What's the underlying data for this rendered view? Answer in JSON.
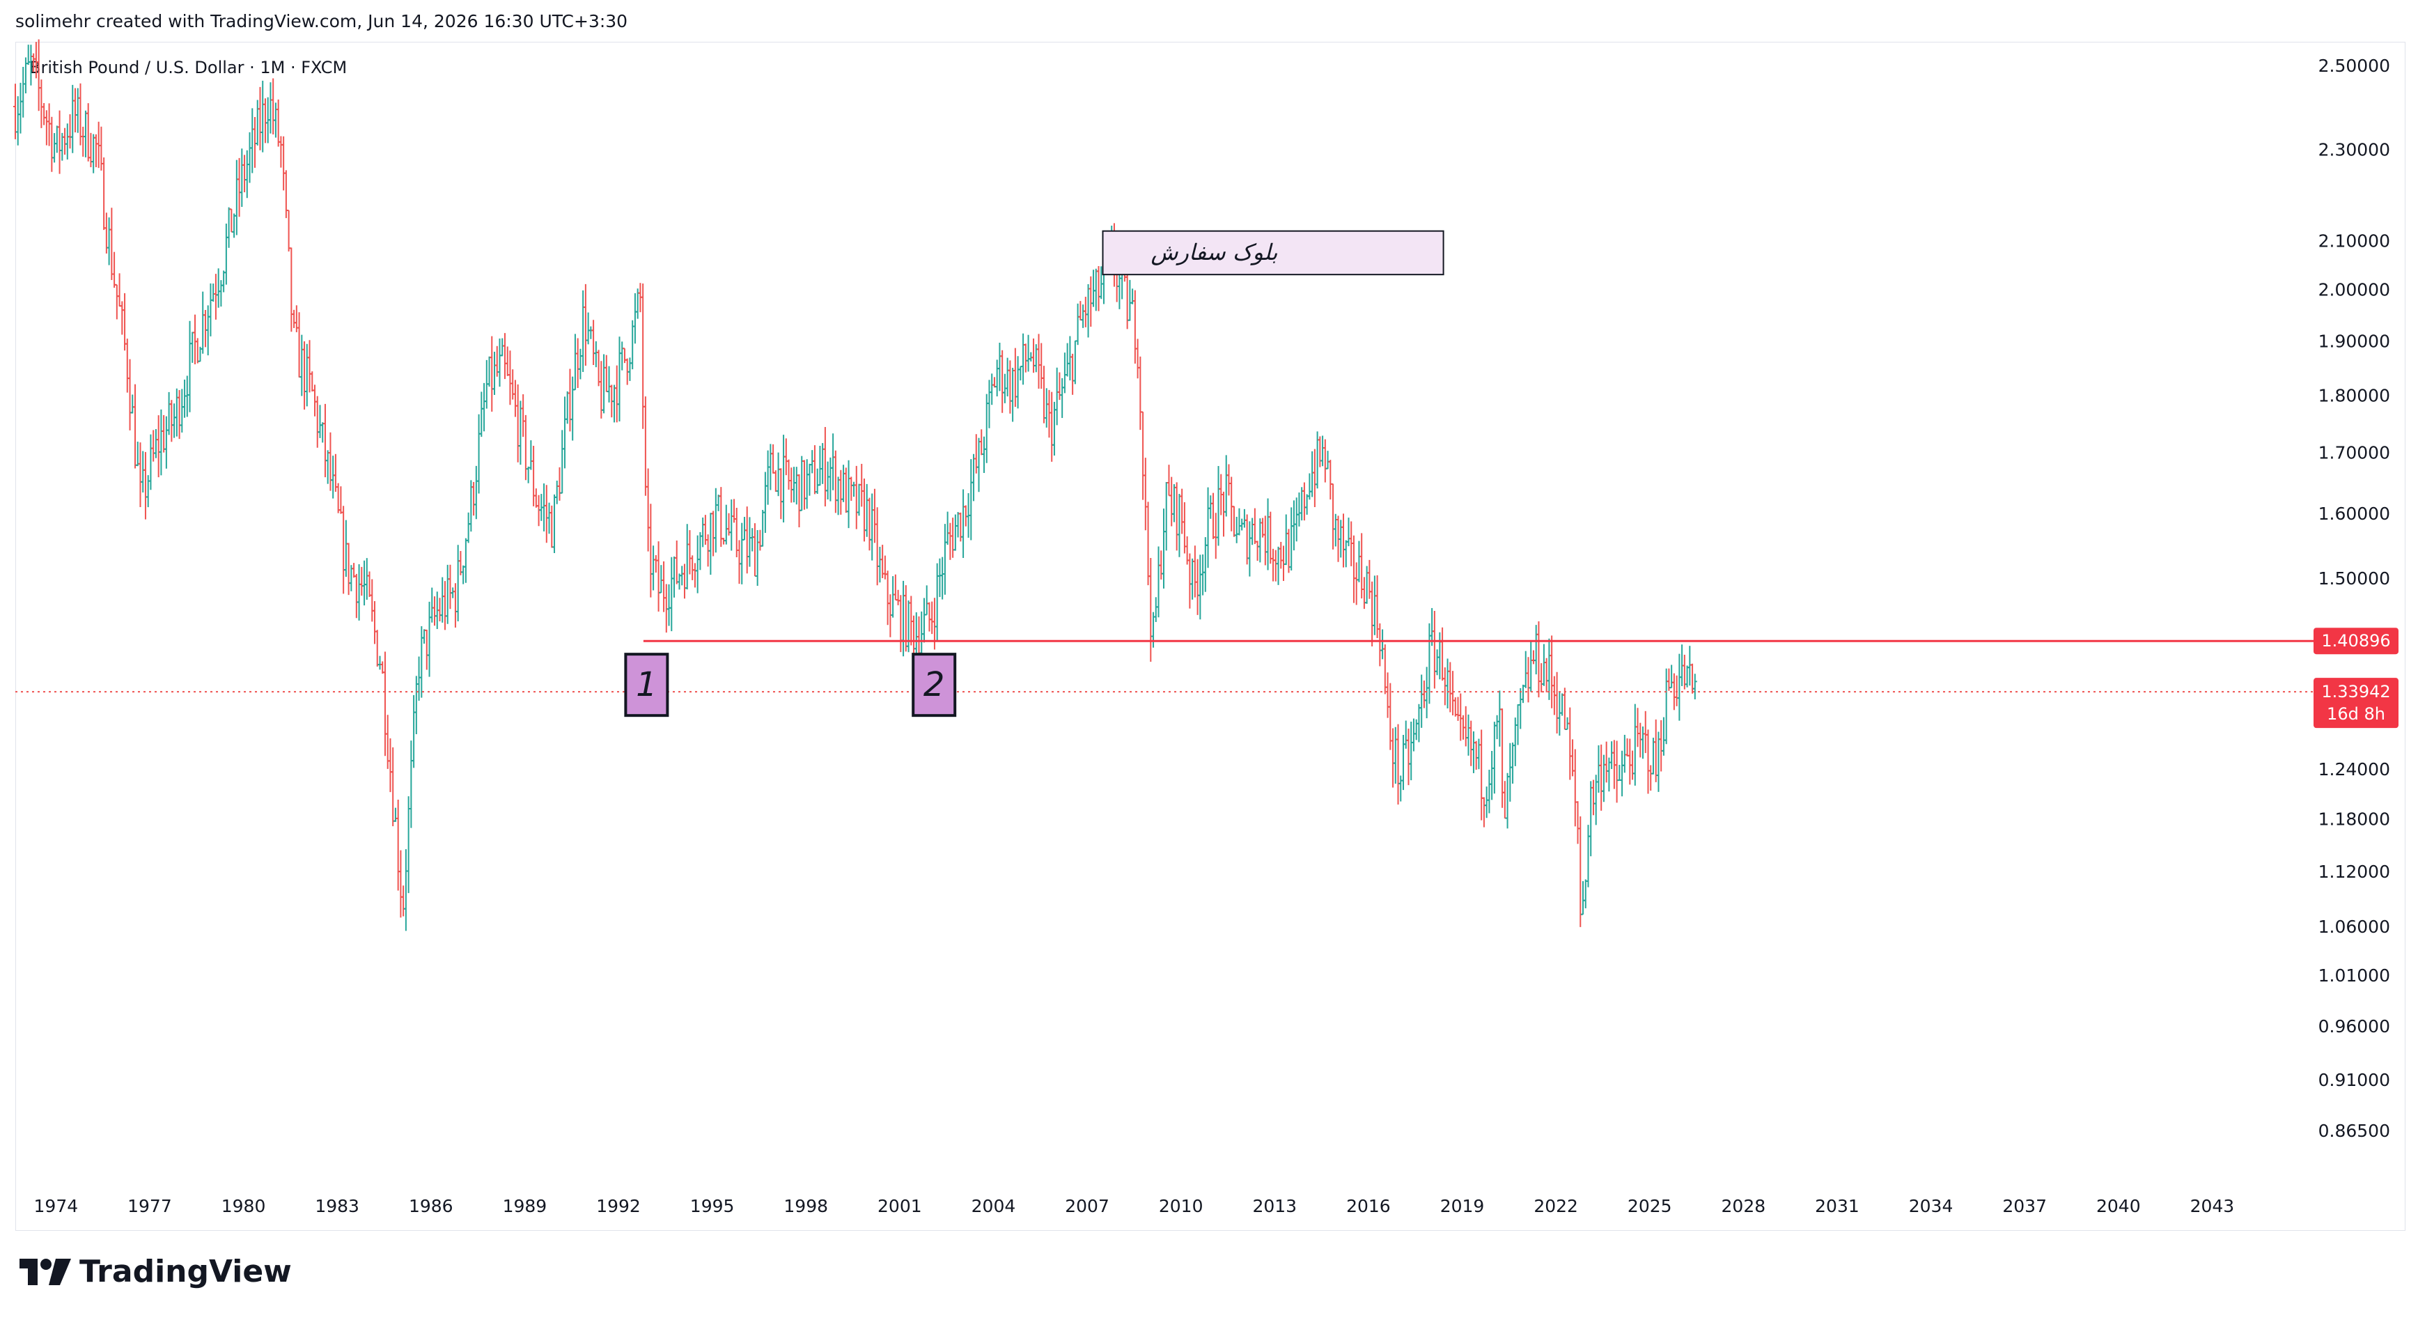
{
  "header": {
    "credit": "solimehr created with TradingView.com, Jun 14, 2026 16:30 UTC+3:30"
  },
  "footer": {
    "brand": "TradingView",
    "logo_icon": "tradingview-logo-icon"
  },
  "colors": {
    "up": "#26a69a",
    "down": "#ef5350",
    "level": "#f23645",
    "box_fill": "#f3e5f5",
    "marker_fill": "#ce93d8"
  },
  "chart_data": {
    "type": "ohlc-bar",
    "title": "British Pound / U.S. Dollar · 1M · FXCM",
    "y_scale": "log",
    "ylim": [
      0.82,
      2.56
    ],
    "xlim": [
      1972.7,
      2046.2
    ],
    "x_ticks": [
      "1974",
      "1977",
      "1980",
      "1983",
      "1986",
      "1989",
      "1992",
      "1995",
      "1998",
      "2001",
      "2004",
      "2007",
      "2010",
      "2013",
      "2016",
      "2019",
      "2022",
      "2025",
      "2028",
      "2031",
      "2034",
      "2037",
      "2040",
      "2043"
    ],
    "y_ticks": [
      "2.50000",
      "2.30000",
      "2.10000",
      "2.00000",
      "1.90000",
      "1.80000",
      "1.70000",
      "1.60000",
      "1.50000",
      "1.24000",
      "1.18000",
      "1.12000",
      "1.06000",
      "1.01000",
      "0.96000",
      "0.91000",
      "0.86500"
    ],
    "price_path": [
      [
        1972.7,
        2.4
      ],
      [
        1973.2,
        2.5
      ],
      [
        1974.0,
        2.3
      ],
      [
        1974.6,
        2.38
      ],
      [
        1975.3,
        2.3
      ],
      [
        1975.8,
        2.05
      ],
      [
        1976.3,
        1.85
      ],
      [
        1976.7,
        1.62
      ],
      [
        1977.3,
        1.72
      ],
      [
        1977.8,
        1.76
      ],
      [
        1978.3,
        1.86
      ],
      [
        1978.8,
        1.96
      ],
      [
        1979.3,
        2.05
      ],
      [
        1979.9,
        2.22
      ],
      [
        1980.5,
        2.35
      ],
      [
        1980.8,
        2.42
      ],
      [
        1981.2,
        2.3
      ],
      [
        1981.6,
        1.9
      ],
      [
        1982.2,
        1.8
      ],
      [
        1982.8,
        1.65
      ],
      [
        1983.3,
        1.52
      ],
      [
        1983.9,
        1.48
      ],
      [
        1984.4,
        1.38
      ],
      [
        1984.8,
        1.2
      ],
      [
        1985.1,
        1.08
      ],
      [
        1985.6,
        1.38
      ],
      [
        1986.2,
        1.45
      ],
      [
        1986.8,
        1.48
      ],
      [
        1987.3,
        1.62
      ],
      [
        1987.8,
        1.82
      ],
      [
        1988.3,
        1.85
      ],
      [
        1988.8,
        1.75
      ],
      [
        1989.4,
        1.62
      ],
      [
        1989.9,
        1.58
      ],
      [
        1990.5,
        1.82
      ],
      [
        1990.9,
        1.95
      ],
      [
        1991.4,
        1.8
      ],
      [
        1991.9,
        1.82
      ],
      [
        1992.4,
        1.9
      ],
      [
        1992.7,
        1.98
      ],
      [
        1992.9,
        1.55
      ],
      [
        1993.3,
        1.48
      ],
      [
        1993.8,
        1.5
      ],
      [
        1994.5,
        1.55
      ],
      [
        1995.1,
        1.6
      ],
      [
        1995.8,
        1.55
      ],
      [
        1996.4,
        1.54
      ],
      [
        1996.9,
        1.68
      ],
      [
        1997.5,
        1.64
      ],
      [
        1998.1,
        1.65
      ],
      [
        1998.7,
        1.68
      ],
      [
        1999.4,
        1.62
      ],
      [
        2000.0,
        1.6
      ],
      [
        2000.5,
        1.48
      ],
      [
        2001.1,
        1.44
      ],
      [
        2001.5,
        1.42
      ],
      [
        2002.0,
        1.44
      ],
      [
        2002.5,
        1.55
      ],
      [
        2003.0,
        1.6
      ],
      [
        2003.6,
        1.7
      ],
      [
        2004.1,
        1.85
      ],
      [
        2004.6,
        1.82
      ],
      [
        2005.2,
        1.88
      ],
      [
        2005.8,
        1.74
      ],
      [
        2006.4,
        1.84
      ],
      [
        2006.9,
        1.96
      ],
      [
        2007.4,
        2.0
      ],
      [
        2007.8,
        2.06
      ],
      [
        2008.2,
        1.98
      ],
      [
        2008.6,
        1.92
      ],
      [
        2008.9,
        1.55
      ],
      [
        2009.1,
        1.4
      ],
      [
        2009.5,
        1.62
      ],
      [
        2010.0,
        1.6
      ],
      [
        2010.4,
        1.48
      ],
      [
        2010.9,
        1.58
      ],
      [
        2011.4,
        1.63
      ],
      [
        2011.9,
        1.56
      ],
      [
        2012.5,
        1.58
      ],
      [
        2013.1,
        1.54
      ],
      [
        2013.6,
        1.55
      ],
      [
        2014.1,
        1.66
      ],
      [
        2014.6,
        1.7
      ],
      [
        2014.9,
        1.58
      ],
      [
        2015.4,
        1.52
      ],
      [
        2015.9,
        1.5
      ],
      [
        2016.4,
        1.42
      ],
      [
        2016.6,
        1.3
      ],
      [
        2017.0,
        1.23
      ],
      [
        2017.5,
        1.28
      ],
      [
        2018.0,
        1.4
      ],
      [
        2018.4,
        1.38
      ],
      [
        2018.8,
        1.28
      ],
      [
        2019.4,
        1.26
      ],
      [
        2019.7,
        1.22
      ],
      [
        2020.2,
        1.3
      ],
      [
        2020.3,
        1.17
      ],
      [
        2020.8,
        1.3
      ],
      [
        2021.3,
        1.39
      ],
      [
        2021.8,
        1.36
      ],
      [
        2022.3,
        1.3
      ],
      [
        2022.7,
        1.17
      ],
      [
        2022.8,
        1.06
      ],
      [
        2023.1,
        1.2
      ],
      [
        2023.6,
        1.26
      ],
      [
        2023.9,
        1.22
      ],
      [
        2024.4,
        1.26
      ],
      [
        2024.9,
        1.27
      ],
      [
        2025.2,
        1.24
      ],
      [
        2025.6,
        1.35
      ],
      [
        2026.1,
        1.36
      ],
      [
        2026.45,
        1.34
      ]
    ],
    "level_price": 1.40896,
    "level_start": 1992.8,
    "level_label": "1.40896",
    "last_price": 1.33942,
    "last_price_label": "1.33942",
    "countdown_label": "16d 8h",
    "order_block": {
      "label": "بلوک سفارش",
      "x0": 2007.5,
      "x1": 2018.4,
      "y_top": 2.12,
      "y_bottom": 2.03
    },
    "markers": [
      {
        "label": "1",
        "x": 1992.9,
        "price": 1.41
      },
      {
        "label": "2",
        "x": 2002.1,
        "price": 1.41
      }
    ]
  }
}
